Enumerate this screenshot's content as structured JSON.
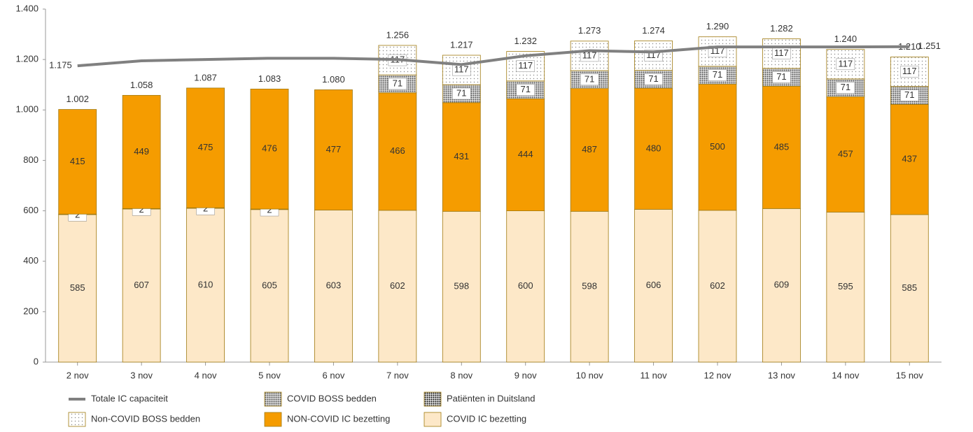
{
  "chart_data": {
    "type": "stacked-bar-line",
    "categories": [
      "2 nov",
      "3 nov",
      "4 nov",
      "5 nov",
      "6 nov",
      "7 nov",
      "8 nov",
      "9 nov",
      "10 nov",
      "11 nov",
      "12 nov",
      "13 nov",
      "14 nov",
      "15 nov"
    ],
    "series": [
      {
        "name": "COVID IC bezetting",
        "color": "#fde8c8",
        "label_color": "#8a6a10",
        "values": [
          585,
          607,
          610,
          605,
          603,
          602,
          598,
          600,
          598,
          606,
          602,
          609,
          595,
          585
        ]
      },
      {
        "name": "Patiënten in Duitsland",
        "color": "#111111",
        "pattern": "dense",
        "values": [
          2,
          2,
          2,
          2,
          0,
          0,
          0,
          0,
          0,
          0,
          0,
          0,
          0,
          0
        ]
      },
      {
        "name": "NON-COVID IC bezetting",
        "color": "#f59c00",
        "label_color": "#5a3a00",
        "values": [
          415,
          449,
          475,
          476,
          477,
          466,
          431,
          444,
          487,
          480,
          500,
          485,
          457,
          437
        ]
      },
      {
        "name": "COVID BOSS bedden",
        "color": "#555555",
        "pattern": "dense",
        "values": [
          0,
          0,
          0,
          0,
          0,
          71,
          71,
          71,
          71,
          71,
          71,
          71,
          71,
          71
        ]
      },
      {
        "name": "Non-COVID BOSS bedden",
        "color": "#888888",
        "pattern": "sparse",
        "values": [
          0,
          0,
          0,
          0,
          0,
          117,
          117,
          117,
          117,
          117,
          117,
          117,
          117,
          117
        ]
      },
      {
        "name": "Totale IC capaciteit",
        "type": "line",
        "color": "#808080",
        "values": [
          1175,
          1195,
          1200,
          1205,
          1205,
          1200,
          1180,
          1215,
          1235,
          1230,
          1250,
          1250,
          1250,
          1251
        ],
        "value_labels": [
          "1.175",
          null,
          null,
          null,
          null,
          null,
          null,
          null,
          null,
          null,
          null,
          null,
          null,
          "1.251"
        ]
      }
    ],
    "totals": {
      "values": [
        1002,
        1058,
        1087,
        1083,
        1080,
        1256,
        1217,
        1232,
        1273,
        1274,
        1290,
        1282,
        1240,
        1210
      ],
      "value_labels": [
        "1.002",
        "1.058",
        "1.087",
        "1.083",
        "1.080",
        "1.256",
        "1.217",
        "1.232",
        "1.273",
        "1.274",
        "1.290",
        "1.282",
        "1.240",
        "1.210"
      ]
    },
    "ylim": [
      0,
      1400
    ],
    "yticks": [
      0,
      200,
      400,
      600,
      800,
      {
        "value": 1000,
        "label": "1.000"
      },
      {
        "value": 1200,
        "label": "1.200"
      },
      {
        "value": 1400,
        "label": "1.400"
      }
    ]
  }
}
